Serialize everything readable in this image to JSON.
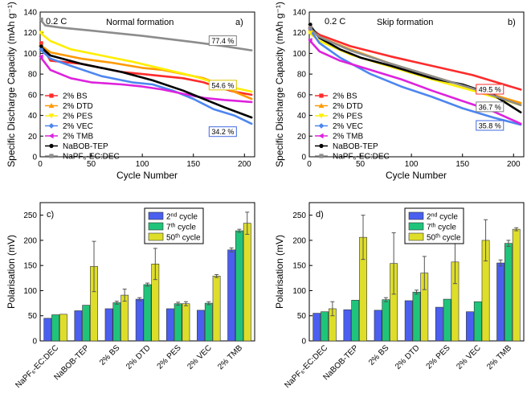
{
  "charts": [
    {
      "panel_label": "a)",
      "title": "Normal formation",
      "rate_label": "0.2 C",
      "xlabel": "Cycle Number",
      "ylabel": "Specific Discharge Capacity (mAh g⁻¹)"
    },
    {
      "panel_label": "b)",
      "title": "Skip formation",
      "rate_label": "0.2 C",
      "xlabel": "Cycle Number",
      "ylabel": "Specific Discharge Capacity (mAh g⁻¹)"
    },
    {
      "panel_label": "c)",
      "ylabel": "Polarisation (mV)",
      "legend": [
        "2nd cycle",
        "7th cycle",
        "50th cycle"
      ]
    },
    {
      "panel_label": "d)",
      "ylabel": "Polarisation (mV)",
      "legend": [
        "2nd cycle",
        "7th cycle",
        "50th cycle"
      ]
    }
  ],
  "chart_data": [
    {
      "type": "line",
      "title": "Normal formation",
      "xlabel": "Cycle Number",
      "ylabel": "Specific Discharge Capacity (mAh g⁻¹)",
      "xlim": [
        0,
        210
      ],
      "ylim": [
        0,
        140
      ],
      "xticks": [
        0,
        50,
        100,
        150,
        200
      ],
      "yticks": [
        0,
        20,
        40,
        60,
        80,
        100,
        120,
        140
      ],
      "annotations": [
        {
          "text": "77.4 %",
          "x": 167,
          "y": 110,
          "color": "#808080"
        },
        {
          "text": "54.6 %",
          "x": 167,
          "y": 67,
          "color": "#d9c400"
        },
        {
          "text": "34.2 %",
          "x": 167,
          "y": 22,
          "color": "#4169e1"
        }
      ],
      "series": [
        {
          "name": "2% BS",
          "color": "#ff2b2b",
          "marker": "square",
          "points": [
            [
              0,
              110
            ],
            [
              10,
              93
            ],
            [
              40,
              90
            ],
            [
              80,
              82
            ],
            [
              100,
              80
            ],
            [
              120,
              78
            ],
            [
              140,
              76
            ],
            [
              160,
              72
            ],
            [
              175,
              67
            ],
            [
              190,
              63
            ],
            [
              207,
              60
            ]
          ]
        },
        {
          "name": "2% DTD",
          "color": "#ff9900",
          "marker": "triangle-up",
          "points": [
            [
              0,
              108
            ],
            [
              10,
              101
            ],
            [
              40,
              95
            ],
            [
              70,
              91
            ],
            [
              100,
              86
            ],
            [
              120,
              84
            ],
            [
              140,
              80
            ],
            [
              160,
              76
            ],
            [
              175,
              70
            ],
            [
              190,
              63
            ],
            [
              207,
              56
            ]
          ]
        },
        {
          "name": "2% PES",
          "color": "#ffee00",
          "marker": "triangle-down",
          "points": [
            [
              0,
              120
            ],
            [
              10,
              112
            ],
            [
              30,
              104
            ],
            [
              60,
              98
            ],
            [
              90,
              92
            ],
            [
              120,
              85
            ],
            [
              150,
              78
            ],
            [
              180,
              69
            ],
            [
              207,
              63
            ]
          ]
        },
        {
          "name": "2% VEC",
          "color": "#4d86f0",
          "marker": "diamond",
          "points": [
            [
              0,
              104
            ],
            [
              10,
              95
            ],
            [
              30,
              88
            ],
            [
              60,
              78
            ],
            [
              90,
              72
            ],
            [
              110,
              70
            ],
            [
              130,
              64
            ],
            [
              150,
              56
            ],
            [
              170,
              46
            ],
            [
              190,
              40
            ],
            [
              207,
              32
            ]
          ]
        },
        {
          "name": "2% TMB",
          "color": "#dd22dd",
          "marker": "triangle-left",
          "points": [
            [
              0,
              97
            ],
            [
              10,
              84
            ],
            [
              30,
              76
            ],
            [
              50,
              72
            ],
            [
              80,
              70
            ],
            [
              100,
              68
            ],
            [
              120,
              65
            ],
            [
              140,
              61
            ],
            [
              160,
              57
            ],
            [
              180,
              55
            ],
            [
              207,
              53
            ]
          ]
        },
        {
          "name": "NaBOB-TEP",
          "color": "#000000",
          "marker": "circle",
          "points": [
            [
              0,
              107
            ],
            [
              10,
              98
            ],
            [
              40,
              90
            ],
            [
              80,
              82
            ],
            [
              110,
              74
            ],
            [
              140,
              64
            ],
            [
              160,
              56
            ],
            [
              180,
              48
            ],
            [
              207,
              38
            ]
          ]
        },
        {
          "name": "NaPF₆-EC:DEC",
          "color": "#8c8c8c",
          "marker": "square",
          "points": [
            [
              0,
              133
            ],
            [
              5,
              127
            ],
            [
              20,
              125
            ],
            [
              50,
              122
            ],
            [
              100,
              117
            ],
            [
              150,
              111
            ],
            [
              180,
              107
            ],
            [
              207,
              103
            ]
          ]
        }
      ]
    },
    {
      "type": "line",
      "title": "Skip formation",
      "xlabel": "Cycle Number",
      "ylabel": "Specific Discharge Capacity (mAh g⁻¹)",
      "xlim": [
        0,
        210
      ],
      "ylim": [
        0,
        140
      ],
      "xticks": [
        0,
        50,
        100,
        150,
        200
      ],
      "yticks": [
        0,
        20,
        40,
        60,
        80,
        100,
        120,
        140
      ],
      "annotations": [
        {
          "text": "49.5 %",
          "x": 165,
          "y": 63,
          "color": "#ff2b2b"
        },
        {
          "text": "36.7 %",
          "x": 165,
          "y": 46,
          "color": "#808080"
        },
        {
          "text": "35.8 %",
          "x": 165,
          "y": 28,
          "color": "#4169e1"
        }
      ],
      "series": [
        {
          "name": "2% BS",
          "color": "#ff2b2b",
          "marker": "square",
          "points": [
            [
              0,
              125
            ],
            [
              10,
              118
            ],
            [
              40,
              107
            ],
            [
              80,
              97
            ],
            [
              120,
              88
            ],
            [
              160,
              79
            ],
            [
              207,
              65
            ]
          ]
        },
        {
          "name": "2% DTD",
          "color": "#ff9900",
          "marker": "triangle-up",
          "points": [
            [
              0,
              123
            ],
            [
              10,
              116
            ],
            [
              40,
              104
            ],
            [
              80,
              90
            ],
            [
              120,
              78
            ],
            [
              160,
              66
            ],
            [
              207,
              52
            ]
          ]
        },
        {
          "name": "2% PES",
          "color": "#ffee00",
          "marker": "triangle-down",
          "points": [
            [
              0,
              120
            ],
            [
              10,
              112
            ],
            [
              40,
              99
            ],
            [
              80,
              87
            ],
            [
              120,
              75
            ],
            [
              160,
              64
            ],
            [
              207,
              50
            ]
          ]
        },
        {
          "name": "2% VEC",
          "color": "#4d86f0",
          "marker": "diamond",
          "points": [
            [
              0,
              124
            ],
            [
              10,
              110
            ],
            [
              30,
              96
            ],
            [
              60,
              80
            ],
            [
              90,
              68
            ],
            [
              120,
              58
            ],
            [
              150,
              47
            ],
            [
              180,
              38
            ],
            [
              207,
              31
            ]
          ]
        },
        {
          "name": "2% TMB",
          "color": "#dd22dd",
          "marker": "triangle-left",
          "points": [
            [
              0,
              113
            ],
            [
              10,
              102
            ],
            [
              30,
              93
            ],
            [
              60,
              84
            ],
            [
              90,
              75
            ],
            [
              120,
              64
            ],
            [
              150,
              54
            ],
            [
              180,
              44
            ],
            [
              207,
              32
            ]
          ]
        },
        {
          "name": "NaBOB-TEP",
          "color": "#000000",
          "marker": "circle",
          "points": [
            [
              0,
              128
            ],
            [
              10,
              115
            ],
            [
              30,
              104
            ],
            [
              50,
              96
            ],
            [
              80,
              88
            ],
            [
              120,
              76
            ],
            [
              150,
              70
            ],
            [
              180,
              60
            ],
            [
              207,
              43
            ]
          ]
        },
        {
          "name": "NaPF₆-EC:DEC",
          "color": "#8c8c8c",
          "marker": "square",
          "points": [
            [
              0,
              125
            ],
            [
              10,
              116
            ],
            [
              40,
              103
            ],
            [
              80,
              90
            ],
            [
              120,
              78
            ],
            [
              160,
              66
            ],
            [
              207,
              50
            ]
          ]
        }
      ]
    },
    {
      "type": "bar",
      "panel": "c)",
      "ylabel": "Polarisation (mV)",
      "ylim": [
        0,
        275
      ],
      "yticks": [
        0,
        50,
        100,
        150,
        200,
        250
      ],
      "categories": [
        "NaPF₆-EC:DEC",
        "NaBOB-TEP",
        "2% BS",
        "2% DTD",
        "2% PES",
        "2% VEC",
        "2% TMB"
      ],
      "series": [
        {
          "name": "2nd cycle",
          "color": "#4a5ff0",
          "values": [
            45,
            60,
            64,
            83,
            64,
            61,
            181
          ],
          "errors": [
            0,
            0,
            0,
            3,
            0,
            0,
            4
          ]
        },
        {
          "name": "7th cycle",
          "color": "#1fc47a",
          "values": [
            52,
            71,
            76,
            112,
            74,
            75,
            219
          ],
          "errors": [
            0,
            0,
            3,
            3,
            3,
            3,
            3
          ]
        },
        {
          "name": "50th cycle",
          "color": "#dede2a",
          "values": [
            53,
            148,
            91,
            153,
            74,
            129,
            234
          ],
          "errors": [
            0,
            50,
            12,
            31,
            4,
            3,
            22
          ]
        }
      ]
    },
    {
      "type": "bar",
      "panel": "d)",
      "ylabel": "Polarisation (mV)",
      "ylim": [
        0,
        275
      ],
      "yticks": [
        0,
        50,
        100,
        150,
        200,
        250
      ],
      "categories": [
        "NaPF₆-EC:DEC",
        "NaBOB-TEP",
        "2% BS",
        "2% DTD",
        "2% PES",
        "2% VEC",
        "2% TMB"
      ],
      "series": [
        {
          "name": "2nd cycle",
          "color": "#4a5ff0",
          "values": [
            55,
            62,
            61,
            80,
            67,
            58,
            155
          ],
          "errors": [
            0,
            0,
            0,
            0,
            0,
            0,
            6
          ]
        },
        {
          "name": "7th cycle",
          "color": "#1fc47a",
          "values": [
            58,
            81,
            82,
            97,
            83,
            78,
            194
          ],
          "errors": [
            0,
            0,
            4,
            4,
            0,
            0,
            6
          ]
        },
        {
          "name": "50th cycle",
          "color": "#dede2a",
          "values": [
            64,
            206,
            154,
            135,
            157,
            200,
            222
          ],
          "errors": [
            14,
            44,
            61,
            33,
            43,
            41,
            3
          ]
        }
      ]
    }
  ]
}
